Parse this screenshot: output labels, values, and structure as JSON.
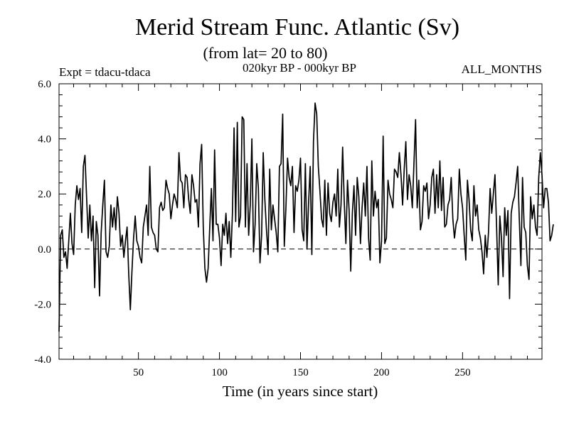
{
  "chart_data": {
    "type": "line",
    "title": "Merid Stream Func. Atlantic (Sv)",
    "subtitle": "(from lat= 20 to 80)",
    "experiment_label": "Expt = tdacu-tdaca",
    "period_label": "020kyr BP - 000kyr BP",
    "months_label": "ALL_MONTHS",
    "xlabel": "Time (in years since start)",
    "ylabel": "",
    "xlim": [
      1,
      299
    ],
    "ylim": [
      -4,
      6
    ],
    "x_ticks": [
      50,
      100,
      150,
      200,
      250
    ],
    "x_tick_labels": [
      "50",
      "100",
      "150",
      "200",
      "250"
    ],
    "y_ticks": [
      -4,
      -2,
      0,
      2,
      4,
      6
    ],
    "y_tick_labels": [
      "-4.0",
      "-2.0",
      "0.0",
      "2.0",
      "4.0",
      "6.0"
    ],
    "reference_line": 0,
    "series": [
      {
        "name": "Merid Stream Func. Atlantic",
        "x_start": 1,
        "x_step": 1,
        "values": [
          -3.0,
          0.5,
          0.7,
          -0.3,
          -0.1,
          -0.7,
          0.3,
          1.3,
          0.2,
          -0.2,
          1.6,
          2.3,
          1.8,
          2.2,
          0.6,
          3.0,
          3.4,
          1.9,
          0.4,
          1.6,
          0.3,
          1.2,
          -1.4,
          1.0,
          0.5,
          -1.7,
          0.6,
          1.6,
          2.5,
          -0.1,
          -0.3,
          0.1,
          1.6,
          0.8,
          1.5,
          0.7,
          1.9,
          1.3,
          0.1,
          0.5,
          -0.3,
          0.3,
          0.8,
          -0.9,
          -2.2,
          -0.8,
          0.4,
          1.2,
          0.3,
          0.1,
          -0.3,
          -0.5,
          0.8,
          1.2,
          1.6,
          0.5,
          3.0,
          0.8,
          0.6,
          0.5,
          0.0,
          -0.1,
          1.5,
          1.7,
          1.4,
          1.5,
          2.5,
          2.2,
          2.0,
          1.1,
          1.6,
          2.0,
          1.8,
          1.5,
          3.5,
          2.5,
          2.4,
          1.5,
          2.7,
          2.6,
          1.8,
          1.3,
          2.7,
          2.3,
          1.7,
          1.8,
          0.8,
          3.1,
          3.8,
          0.8,
          -0.7,
          -1.2,
          -0.7,
          0.8,
          2.2,
          0.3,
          3.6,
          0.9,
          0.9,
          0.4,
          -0.6,
          0.9,
          0.5,
          1.3,
          0.2,
          1.0,
          -0.3,
          1.3,
          4.4,
          1.0,
          4.6,
          0.8,
          1.2,
          4.8,
          4.7,
          0.8,
          3.1,
          0.5,
          1.6,
          4.0,
          -0.1,
          0.9,
          3.1,
          2.2,
          -0.5,
          0.5,
          3.5,
          1.8,
          0.7,
          -0.2,
          2.9,
          0.7,
          1.6,
          1.1,
          0.6,
          -0.1,
          3.0,
          3.1,
          4.9,
          0.1,
          1.5,
          3.3,
          2.6,
          2.3,
          3.0,
          0.6,
          2.3,
          2.1,
          2.5,
          3.3,
          0.7,
          0.3,
          3.1,
          0.0,
          1.7,
          3.0,
          -0.2,
          3.9,
          5.3,
          4.9,
          3.0,
          2.1,
          1.1,
          0.8,
          2.5,
          0.5,
          2.4,
          1.3,
          1.0,
          1.7,
          2.0,
          1.2,
          2.9,
          0.8,
          1.6,
          3.7,
          1.7,
          0.2,
          2.5,
          1.4,
          -0.8,
          1.3,
          2.3,
          0.5,
          2.6,
          1.9,
          0.2,
          1.5,
          2.4,
          1.2,
          3.0,
          0.4,
          -0.4,
          3.2,
          1.2,
          2.1,
          1.5,
          1.8,
          -0.5,
          0.3,
          4.1,
          0.2,
          0.4,
          2.5,
          2.0,
          1.8,
          1.5,
          2.9,
          2.8,
          2.6,
          3.5,
          2.7,
          1.6,
          2.9,
          3.9,
          1.8,
          2.7,
          2.3,
          1.5,
          3.1,
          4.7,
          1.5,
          2.5,
          0.7,
          1.0,
          2.3,
          2.1,
          2.4,
          1.1,
          1.6,
          2.6,
          2.9,
          1.3,
          2.7,
          1.5,
          3.2,
          1.4,
          2.6,
          0.8,
          0.9,
          1.6,
          1.8,
          2.6,
          1.1,
          0.4,
          0.9,
          1.1,
          2.9,
          2.0,
          1.5,
          0.5,
          -0.4,
          2.5,
          1.8,
          0.7,
          0.3,
          2.3,
          1.2,
          1.6,
          0.7,
          0.4,
          -0.1,
          -0.9,
          0.5,
          -0.3,
          0.6,
          2.2,
          1.3,
          2.0,
          2.7,
          0.8,
          -1.3,
          1.2,
          0.4,
          -1.0,
          1.5,
          0.5,
          1.4,
          -1.8,
          1.3,
          1.7,
          1.9,
          2.4,
          3.0,
          1.1,
          -0.6,
          2.6,
          0.8,
          0.6,
          -0.6,
          -1.1,
          1.9,
          1.1,
          1.6,
          0.8,
          0.5,
          2.6,
          3.5,
          2.7,
          1.5,
          2.2,
          2.2,
          1.7,
          0.3,
          0.5,
          0.9
        ]
      }
    ]
  }
}
